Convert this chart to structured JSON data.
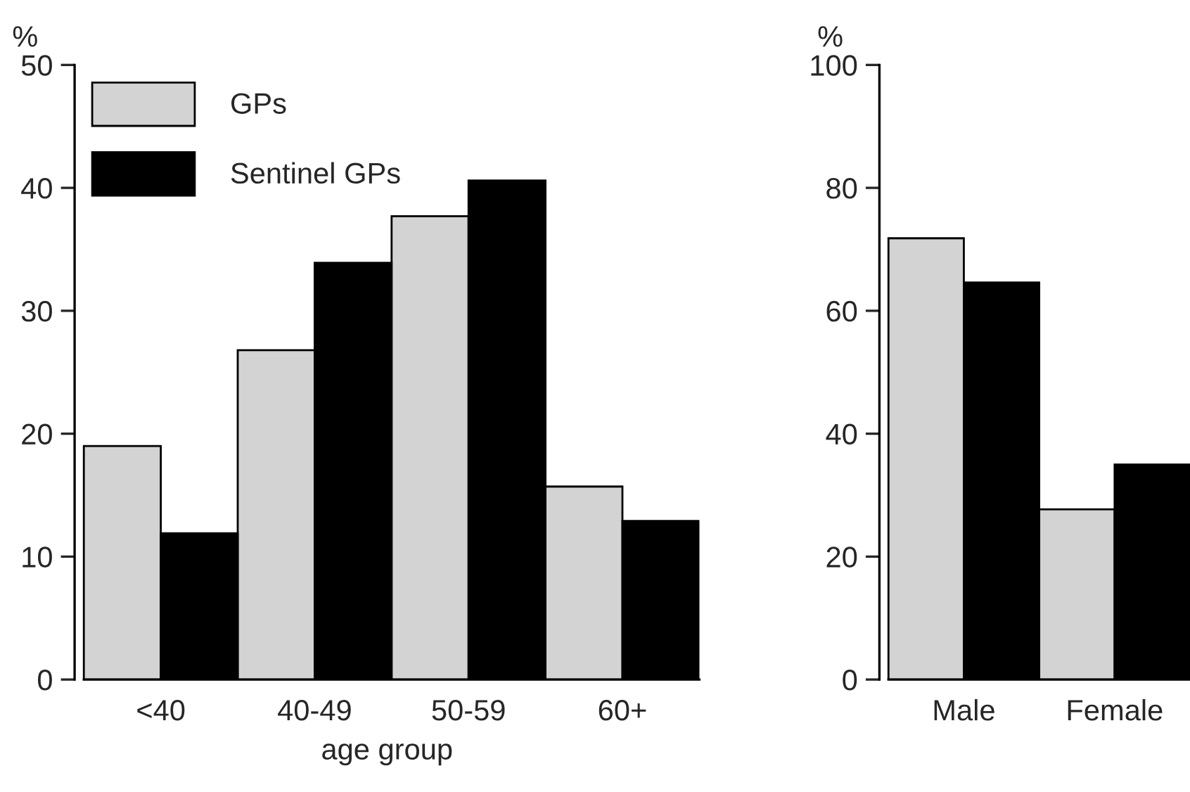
{
  "chart_data": [
    {
      "type": "bar",
      "categories": [
        "<40",
        "40-49",
        "50-59",
        "60+"
      ],
      "xlabel": "age group",
      "ylabel": "%",
      "ylim": [
        0,
        50
      ],
      "yticks": [
        0,
        10,
        20,
        30,
        40,
        50
      ],
      "grid": false,
      "legend": "top left",
      "series": [
        {
          "name": "GPs",
          "color": "#d3d3d3",
          "values": [
            19.0,
            26.8,
            37.7,
            15.7
          ]
        },
        {
          "name": "Sentinel GPs",
          "color": "#000000",
          "values": [
            11.9,
            33.9,
            40.6,
            12.9
          ]
        }
      ]
    },
    {
      "type": "bar",
      "categories": [
        "Male",
        "Female"
      ],
      "ylabel": "%",
      "ylim": [
        0,
        100
      ],
      "yticks": [
        0,
        20,
        40,
        60,
        80,
        100
      ],
      "grid": false,
      "series": [
        {
          "color": "#d3d3d3",
          "values": [
            71.8,
            27.7
          ]
        },
        {
          "color": "#000000",
          "values": [
            64.6,
            35.0
          ]
        }
      ]
    }
  ]
}
